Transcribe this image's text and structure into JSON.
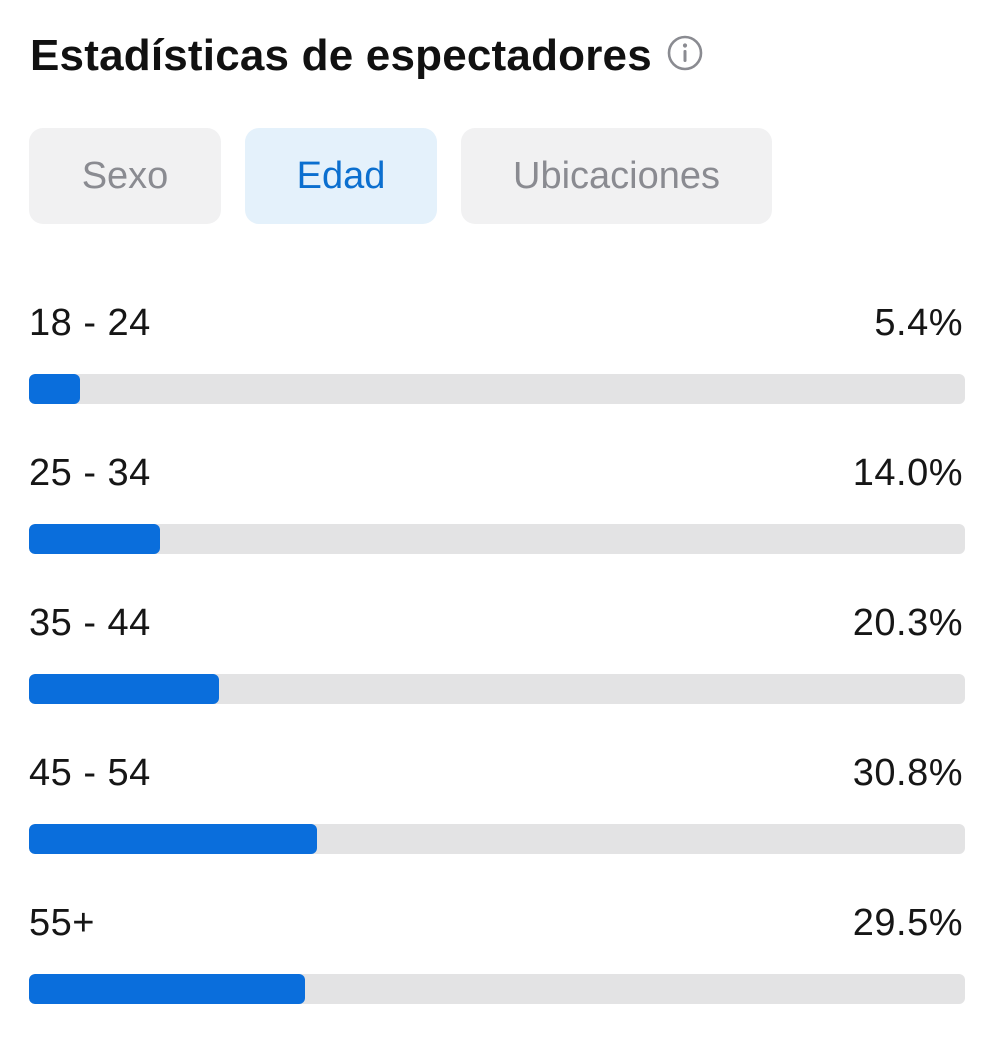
{
  "header": {
    "title": "Estadísticas de espectadores",
    "info_icon": "info-icon"
  },
  "tabs": [
    {
      "label": "Sexo",
      "active": false
    },
    {
      "label": "Edad",
      "active": true
    },
    {
      "label": "Ubicaciones",
      "active": false
    }
  ],
  "age_stats": [
    {
      "label": "18 - 24",
      "value": "5.4%",
      "percent": 5.4
    },
    {
      "label": "25 - 34",
      "value": "14.0%",
      "percent": 14.0
    },
    {
      "label": "35 - 44",
      "value": "20.3%",
      "percent": 20.3
    },
    {
      "label": "45 - 54",
      "value": "30.8%",
      "percent": 30.8
    },
    {
      "label": "55+",
      "value": "29.5%",
      "percent": 29.5
    }
  ],
  "colors": {
    "accent": "#0a6edc",
    "active_tab_bg": "#e4f1fb",
    "active_tab_text": "#0b6fcf",
    "inactive_tab_bg": "#f1f1f2",
    "inactive_tab_text": "#8a8b91",
    "track": "#e3e3e4"
  }
}
